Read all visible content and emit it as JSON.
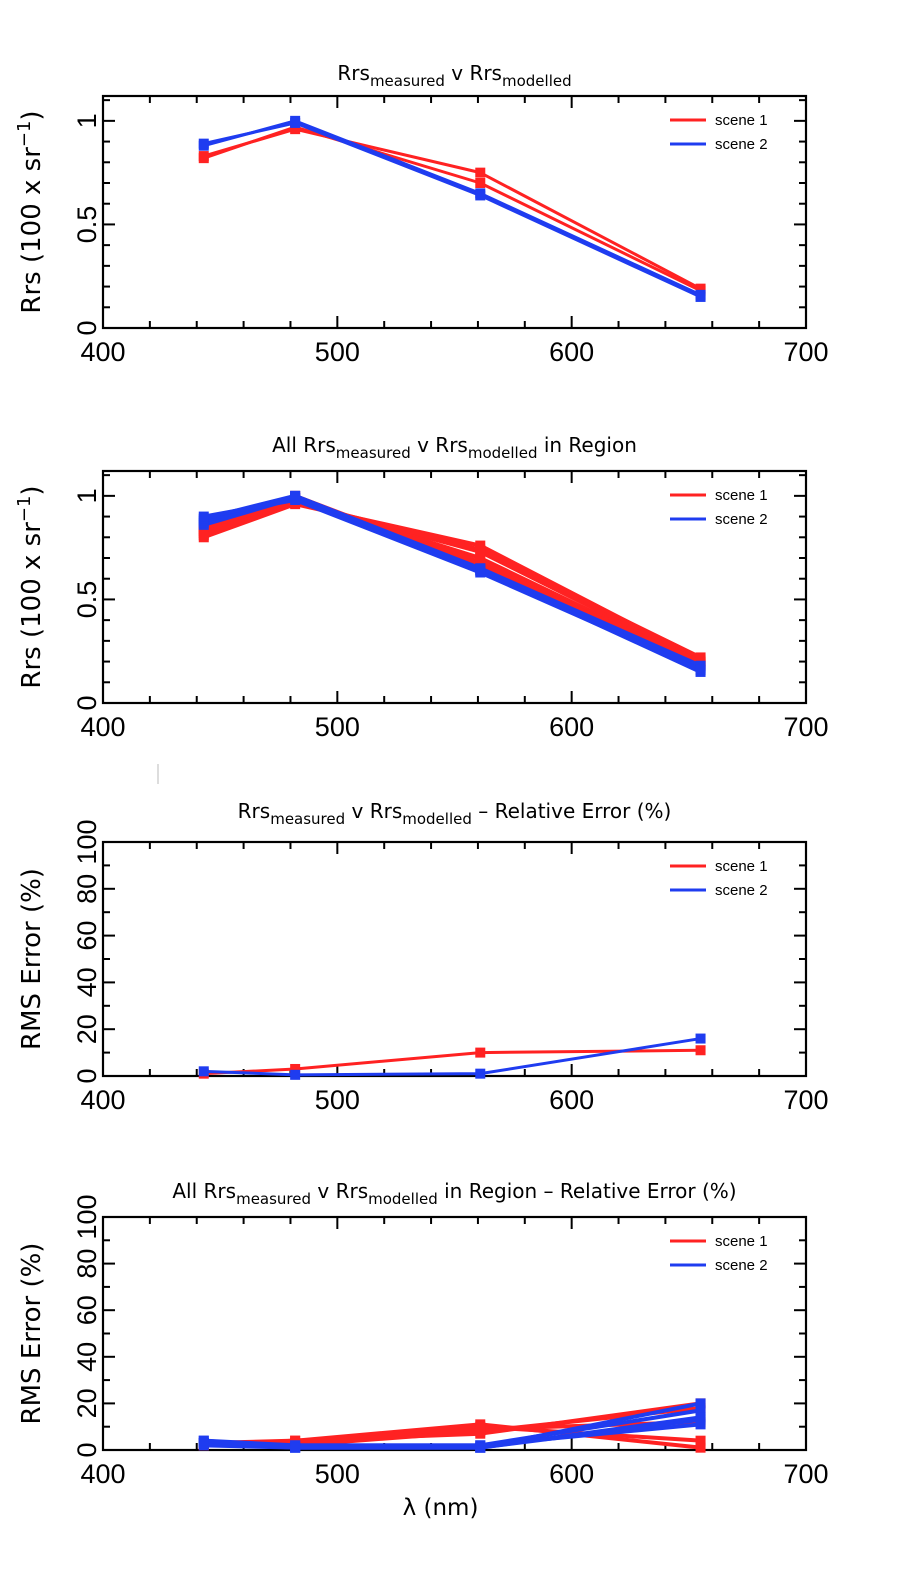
{
  "colors": {
    "scene 1": "#ff2222",
    "scene 2": "#1f3cf0"
  },
  "chart_data": [
    {
      "type": "line",
      "title_parts": [
        {
          "text": "Rrs"
        },
        {
          "text": "measured",
          "sub": true
        },
        {
          "text": " v Rrs"
        },
        {
          "text": "modelled",
          "sub": true
        }
      ],
      "xlabel": "",
      "ylabel": "Rrs (100 x sr",
      "ylabel_sup": "−1",
      "ylabel_end": ")",
      "xlim": [
        400,
        700
      ],
      "ylim": [
        0,
        1.12
      ],
      "xticks": [
        "400",
        "500",
        "600",
        "700"
      ],
      "yticks": [
        "0",
        "0.5",
        "1"
      ],
      "ytick_values": [
        0,
        0.5,
        1
      ],
      "legend": [
        "scene 1",
        "scene 2"
      ],
      "legend_position": "top-right",
      "series": [
        {
          "name": "scene 1",
          "x": [
            443,
            482,
            561,
            655
          ],
          "y": [
            0.82,
            0.97,
            0.7,
            0.18
          ]
        },
        {
          "name": "scene 1",
          "x": [
            443,
            482,
            561,
            655
          ],
          "y": [
            0.83,
            0.96,
            0.75,
            0.19
          ]
        },
        {
          "name": "scene 2",
          "x": [
            443,
            482,
            561,
            655
          ],
          "y": [
            0.88,
            1.0,
            0.65,
            0.16
          ]
        },
        {
          "name": "scene 2",
          "x": [
            443,
            482,
            561,
            655
          ],
          "y": [
            0.89,
            0.99,
            0.64,
            0.15
          ]
        }
      ]
    },
    {
      "type": "line",
      "title_parts": [
        {
          "text": "All Rrs"
        },
        {
          "text": "measured",
          "sub": true
        },
        {
          "text": " v Rrs"
        },
        {
          "text": "modelled",
          "sub": true
        },
        {
          "text": " in Region"
        }
      ],
      "xlabel": "",
      "ylabel": "Rrs (100 x sr",
      "ylabel_sup": "−1",
      "ylabel_end": ")",
      "xlim": [
        400,
        700
      ],
      "ylim": [
        0,
        1.12
      ],
      "xticks": [
        "400",
        "500",
        "600",
        "700"
      ],
      "yticks": [
        "0",
        "0.5",
        "1"
      ],
      "ytick_values": [
        0,
        0.5,
        1
      ],
      "legend": [
        "scene 1",
        "scene 2"
      ],
      "legend_position": "top-right",
      "series": [
        {
          "name": "scene 1",
          "x": [
            443,
            482,
            561,
            655
          ],
          "y": [
            0.8,
            0.96,
            0.76,
            0.21
          ]
        },
        {
          "name": "scene 1",
          "x": [
            443,
            482,
            561,
            655
          ],
          "y": [
            0.81,
            0.97,
            0.73,
            0.2
          ]
        },
        {
          "name": "scene 1",
          "x": [
            443,
            482,
            561,
            655
          ],
          "y": [
            0.82,
            0.98,
            0.7,
            0.19
          ]
        },
        {
          "name": "scene 1",
          "x": [
            443,
            482,
            561,
            655
          ],
          "y": [
            0.83,
            0.99,
            0.68,
            0.18
          ]
        },
        {
          "name": "scene 1",
          "x": [
            443,
            482,
            561,
            655
          ],
          "y": [
            0.84,
            1.0,
            0.66,
            0.2
          ]
        },
        {
          "name": "scene 1",
          "x": [
            443,
            482,
            561,
            655
          ],
          "y": [
            0.85,
            0.97,
            0.74,
            0.22
          ]
        },
        {
          "name": "scene 2",
          "x": [
            443,
            482,
            561,
            655
          ],
          "y": [
            0.86,
            0.99,
            0.65,
            0.16
          ]
        },
        {
          "name": "scene 2",
          "x": [
            443,
            482,
            561,
            655
          ],
          "y": [
            0.87,
            1.0,
            0.64,
            0.15
          ]
        },
        {
          "name": "scene 2",
          "x": [
            443,
            482,
            561,
            655
          ],
          "y": [
            0.88,
            0.99,
            0.64,
            0.17
          ]
        },
        {
          "name": "scene 2",
          "x": [
            443,
            482,
            561,
            655
          ],
          "y": [
            0.89,
            1.0,
            0.65,
            0.18
          ]
        },
        {
          "name": "scene 2",
          "x": [
            443,
            482,
            561,
            655
          ],
          "y": [
            0.9,
            0.98,
            0.63,
            0.16
          ]
        }
      ]
    },
    {
      "type": "line",
      "title_parts": [
        {
          "text": "Rrs"
        },
        {
          "text": "measured",
          "sub": true
        },
        {
          "text": " v Rrs"
        },
        {
          "text": "modelled",
          "sub": true
        },
        {
          "text": " – Relative Error (%)"
        }
      ],
      "xlabel": "",
      "ylabel": "RMS Error (%)",
      "xlim": [
        400,
        700
      ],
      "ylim": [
        0,
        100
      ],
      "xticks": [
        "400",
        "500",
        "600",
        "700"
      ],
      "yticks": [
        "0",
        "20",
        "40",
        "60",
        "80",
        "100"
      ],
      "ytick_values": [
        0,
        20,
        40,
        60,
        80,
        100
      ],
      "legend": [
        "scene 1",
        "scene 2"
      ],
      "legend_position": "top-right",
      "series": [
        {
          "name": "scene 1",
          "x": [
            443,
            482,
            561,
            655
          ],
          "y": [
            1,
            3,
            10,
            11
          ]
        },
        {
          "name": "scene 2",
          "x": [
            443,
            482,
            561,
            655
          ],
          "y": [
            2,
            0.5,
            1,
            16
          ]
        }
      ]
    },
    {
      "type": "line",
      "title_parts": [
        {
          "text": "All Rrs"
        },
        {
          "text": "measured",
          "sub": true
        },
        {
          "text": " v Rrs"
        },
        {
          "text": "modelled",
          "sub": true
        },
        {
          "text": " in Region – Relative Error (%)"
        }
      ],
      "xlabel": "λ (nm)",
      "ylabel": "RMS Error (%)",
      "xlim": [
        400,
        700
      ],
      "ylim": [
        0,
        100
      ],
      "xticks": [
        "400",
        "500",
        "600",
        "700"
      ],
      "yticks": [
        "0",
        "20",
        "40",
        "60",
        "80",
        "100"
      ],
      "ytick_values": [
        0,
        20,
        40,
        60,
        80,
        100
      ],
      "legend": [
        "scene 1",
        "scene 2"
      ],
      "legend_position": "top-right",
      "series": [
        {
          "name": "scene 1",
          "x": [
            443,
            482,
            561,
            655
          ],
          "y": [
            2,
            4,
            11,
            1
          ]
        },
        {
          "name": "scene 1",
          "x": [
            443,
            482,
            561,
            655
          ],
          "y": [
            2,
            3,
            10,
            4
          ]
        },
        {
          "name": "scene 1",
          "x": [
            443,
            482,
            561,
            655
          ],
          "y": [
            3,
            3,
            9,
            12
          ]
        },
        {
          "name": "scene 1",
          "x": [
            443,
            482,
            561,
            655
          ],
          "y": [
            2,
            2,
            8,
            18
          ]
        },
        {
          "name": "scene 1",
          "x": [
            443,
            482,
            561,
            655
          ],
          "y": [
            3,
            4,
            7,
            20
          ]
        },
        {
          "name": "scene 2",
          "x": [
            443,
            482,
            561,
            655
          ],
          "y": [
            3,
            1,
            1,
            20
          ]
        },
        {
          "name": "scene 2",
          "x": [
            443,
            482,
            561,
            655
          ],
          "y": [
            4,
            2,
            2,
            17
          ]
        },
        {
          "name": "scene 2",
          "x": [
            443,
            482,
            561,
            655
          ],
          "y": [
            2,
            1,
            1,
            14
          ]
        },
        {
          "name": "scene 2",
          "x": [
            443,
            482,
            561,
            655
          ],
          "y": [
            3,
            2,
            2,
            11
          ]
        },
        {
          "name": "scene 2",
          "x": [
            443,
            482,
            561,
            655
          ],
          "y": [
            4,
            1,
            1,
            13
          ]
        }
      ]
    }
  ]
}
